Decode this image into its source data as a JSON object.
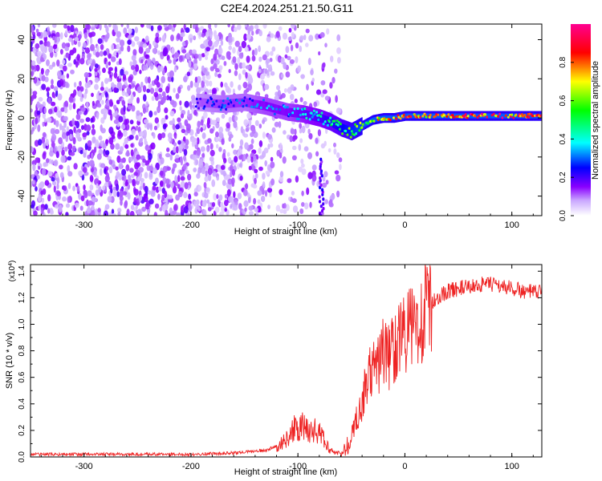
{
  "page": {
    "title": "C2E4.2024.251.21.50.G11"
  },
  "chart_data": [
    {
      "type": "heatmap",
      "xlabel": "Height of straight line (km)",
      "ylabel": "Frequency (Hz)",
      "xlim": [
        -350,
        128
      ],
      "ylim": [
        -50,
        48
      ],
      "x_ticks": [
        -300,
        -200,
        -100,
        0,
        100
      ],
      "y_ticks": [
        -40,
        -20,
        0,
        20,
        40
      ],
      "x_tick_labels": [
        "-300",
        "-200",
        "-100",
        "0",
        "100"
      ],
      "y_tick_labels": [
        "-40",
        "-20",
        "0",
        "20",
        "40"
      ],
      "colorbar": {
        "label": "Normalized spectral amplitude",
        "range": [
          0,
          1
        ],
        "ticks": [
          0,
          0.2,
          0.4,
          0.6,
          0.8
        ],
        "tick_labels": [
          "0.0",
          "0.2",
          "0.4",
          "0.6",
          "0.8"
        ],
        "colors": [
          "#ffffff",
          "#8a00ff",
          "#0000ff",
          "#00ffff",
          "#00ff00",
          "#ffff00",
          "#ff0000",
          "#ff00a0"
        ]
      },
      "ridge": {
        "x": [
          -195,
          -170,
          -150,
          -130,
          -110,
          -95,
          -80,
          -70,
          -60,
          -50,
          -40,
          -30,
          -20,
          -10,
          0,
          10,
          20,
          40,
          60,
          80,
          100,
          128
        ],
        "y": [
          8,
          7,
          8,
          6,
          3,
          2,
          0,
          -2,
          -5,
          -7,
          -4,
          -1,
          0,
          0,
          1,
          1,
          1,
          1,
          1,
          1,
          1,
          1
        ],
        "amplitude": [
          0.25,
          0.3,
          0.3,
          0.35,
          0.35,
          0.4,
          0.45,
          0.5,
          0.55,
          0.6,
          0.65,
          0.7,
          0.8,
          0.85,
          0.85,
          0.9,
          0.85,
          0.9,
          0.9,
          0.95,
          0.9,
          0.9
        ]
      },
      "noise_region": {
        "x_range": [
          -350,
          -120
        ],
        "y_range": [
          -50,
          48
        ]
      },
      "spike": {
        "x": -78,
        "y_range": [
          -50,
          -20
        ]
      }
    },
    {
      "type": "line",
      "xlabel": "Height of straight line (km)",
      "ylabel": "SNR (10 * v/v)",
      "y_multiplier": "(x10",
      "y_multiplier_exp": "4",
      "y_multiplier_close": ")",
      "xlim": [
        -350,
        128
      ],
      "ylim": [
        0,
        1.45
      ],
      "x_ticks": [
        -300,
        -200,
        -100,
        0,
        100
      ],
      "y_ticks": [
        0,
        0.2,
        0.4,
        0.6,
        0.8,
        1.0,
        1.2,
        1.4
      ],
      "x_tick_labels": [
        "-300",
        "-200",
        "-100",
        "0",
        "100"
      ],
      "y_tick_labels": [
        "0.0",
        "0.2",
        "0.4",
        "0.6",
        "0.8",
        "1.0",
        "1.2",
        "1.4"
      ],
      "line_color": "#ee2222",
      "series": [
        {
          "x": [
            -350,
            -300,
            -250,
            -200,
            -160,
            -130,
            -115,
            -105,
            -95,
            -85,
            -80,
            -75,
            -70,
            -62,
            -55,
            -50,
            -45,
            -40,
            -35,
            -30,
            -25,
            -20,
            -15,
            -10,
            -5,
            0,
            5,
            10,
            15,
            20,
            25,
            30,
            40,
            50,
            60,
            70,
            80,
            90,
            100,
            110,
            120,
            128
          ],
          "y": [
            0.02,
            0.02,
            0.02,
            0.02,
            0.03,
            0.05,
            0.1,
            0.2,
            0.22,
            0.2,
            0.18,
            0.12,
            0.05,
            0.03,
            0.05,
            0.15,
            0.3,
            0.4,
            0.6,
            0.65,
            0.7,
            0.8,
            0.75,
            0.85,
            0.9,
            0.95,
            0.95,
            1.0,
            1.05,
            1.1,
            1.15,
            1.2,
            1.25,
            1.27,
            1.28,
            1.3,
            1.3,
            1.29,
            1.27,
            1.25,
            1.24,
            1.24
          ]
        }
      ]
    }
  ]
}
